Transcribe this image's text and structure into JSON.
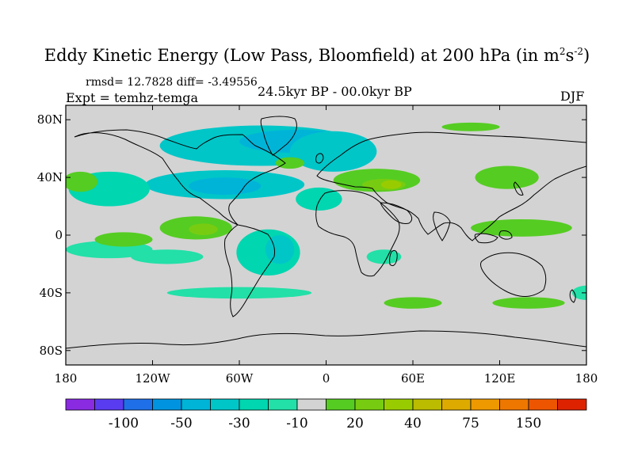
{
  "title": {
    "main": "Eddy Kinetic Energy (Low Pass, Bloomfield) at 200 hPa (in m",
    "sup1": "2",
    "mid": "s",
    "sup2": "-2",
    "end": ")"
  },
  "stats": "rmsd= 12.7828 diff= -3.49556",
  "experiment": "Expt = temhz-temga",
  "period": "24.5kyr BP - 00.0kyr BP",
  "season": "DJF",
  "map": {
    "background_color": "#d3d3d3",
    "lon_ticks": [
      {
        "lon": -180,
        "label": "180"
      },
      {
        "lon": -120,
        "label": "120W"
      },
      {
        "lon": -60,
        "label": "60W"
      },
      {
        "lon": 0,
        "label": "0"
      },
      {
        "lon": 60,
        "label": "60E"
      },
      {
        "lon": 120,
        "label": "120E"
      },
      {
        "lon": 180,
        "label": "180"
      }
    ],
    "lat_ticks": [
      {
        "lat": 80,
        "label": "80N"
      },
      {
        "lat": 40,
        "label": "40N"
      },
      {
        "lat": 0,
        "label": "0"
      },
      {
        "lat": -40,
        "label": "40S"
      },
      {
        "lat": -80,
        "label": "80S"
      }
    ],
    "anomaly_regions": [
      {
        "lon": -45,
        "lat": 62,
        "rlon": 70,
        "rlat": 14,
        "level": -3
      },
      {
        "lon": -20,
        "lat": 65,
        "rlon": 40,
        "rlat": 8,
        "level": -4
      },
      {
        "lon": 5,
        "lat": 58,
        "rlon": 30,
        "rlat": 14,
        "level": -3
      },
      {
        "lon": -70,
        "lat": 35,
        "rlon": 55,
        "rlat": 10,
        "level": -3
      },
      {
        "lon": -70,
        "lat": 34,
        "rlon": 25,
        "rlat": 6,
        "level": -4
      },
      {
        "lon": -150,
        "lat": 32,
        "rlon": 28,
        "rlat": 12,
        "level": -2
      },
      {
        "lon": -5,
        "lat": 25,
        "rlon": 16,
        "rlat": 8,
        "level": -2
      },
      {
        "lon": -40,
        "lat": -12,
        "rlon": 22,
        "rlat": 16,
        "level": -2
      },
      {
        "lon": -32,
        "lat": -10,
        "rlon": 10,
        "rlat": 10,
        "level": -3
      },
      {
        "lon": -150,
        "lat": -10,
        "rlon": 30,
        "rlat": 6,
        "level": -1
      },
      {
        "lon": -110,
        "lat": -15,
        "rlon": 25,
        "rlat": 5,
        "level": -1
      },
      {
        "lon": -60,
        "lat": -40,
        "rlon": 50,
        "rlat": 4,
        "level": -1
      },
      {
        "lon": 40,
        "lat": -15,
        "rlon": 12,
        "rlat": 5,
        "level": -1
      },
      {
        "lon": 180,
        "lat": -40,
        "rlon": 10,
        "rlat": 5,
        "level": -1
      },
      {
        "lon": 35,
        "lat": 38,
        "rlon": 30,
        "rlat": 8,
        "level": 1
      },
      {
        "lon": 40,
        "lat": 35,
        "rlon": 15,
        "rlat": 4,
        "level": 2
      },
      {
        "lon": 45,
        "lat": 35,
        "rlon": 7,
        "rlat": 3,
        "level": 3
      },
      {
        "lon": 125,
        "lat": 40,
        "rlon": 22,
        "rlat": 8,
        "level": 1
      },
      {
        "lon": -170,
        "lat": 37,
        "rlon": 12,
        "rlat": 7,
        "level": 1
      },
      {
        "lon": -90,
        "lat": 5,
        "rlon": 25,
        "rlat": 8,
        "level": 1
      },
      {
        "lon": -85,
        "lat": 4,
        "rlon": 10,
        "rlat": 4,
        "level": 2
      },
      {
        "lon": 135,
        "lat": 5,
        "rlon": 35,
        "rlat": 6,
        "level": 1
      },
      {
        "lon": -140,
        "lat": -3,
        "rlon": 20,
        "rlat": 5,
        "level": 1
      },
      {
        "lon": 100,
        "lat": 75,
        "rlon": 20,
        "rlat": 3,
        "level": 1
      },
      {
        "lon": -25,
        "lat": 50,
        "rlon": 10,
        "rlat": 4,
        "level": 1
      },
      {
        "lon": 60,
        "lat": -47,
        "rlon": 20,
        "rlat": 4,
        "level": 1
      },
      {
        "lon": 140,
        "lat": -47,
        "rlon": 25,
        "rlat": 4,
        "level": 1
      }
    ]
  },
  "colorbar": {
    "colors": [
      "#8a2be2",
      "#5a3cf0",
      "#1f70e8",
      "#0094e0",
      "#00b4d8",
      "#00c6c8",
      "#00d6b0",
      "#22e0a8",
      "#d3d3d3",
      "#55cc22",
      "#77cc11",
      "#99cc00",
      "#bbbb00",
      "#ddaa00",
      "#ee9900",
      "#ee7700",
      "#ee5500",
      "#dd2200"
    ],
    "labels": [
      {
        "index": 2,
        "text": "-100"
      },
      {
        "index": 4,
        "text": "-50"
      },
      {
        "index": 6,
        "text": "-30"
      },
      {
        "index": 8,
        "text": "-10"
      },
      {
        "index": 10,
        "text": "20"
      },
      {
        "index": 12,
        "text": "40"
      },
      {
        "index": 14,
        "text": "75"
      },
      {
        "index": 16,
        "text": "150"
      }
    ]
  }
}
